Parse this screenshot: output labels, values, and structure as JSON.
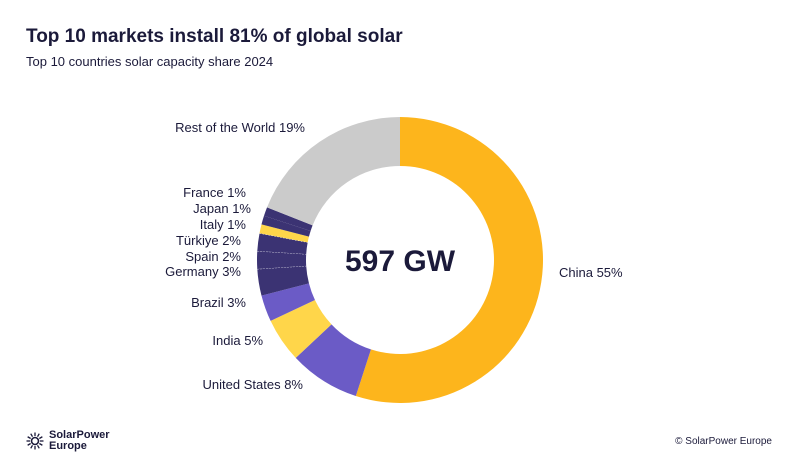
{
  "header": {
    "title": "Top 10 markets install 81% of global solar",
    "subtitle": "Top 10 countries solar capacity share 2024"
  },
  "chart_data": {
    "type": "pie",
    "donut": true,
    "center_label": "597 GW",
    "categories": [
      "China",
      "United States",
      "India",
      "Brazil",
      "Germany",
      "Spain",
      "Türkiye",
      "Italy",
      "Japan",
      "France",
      "Rest of the World"
    ],
    "values": [
      55,
      8,
      5,
      3,
      3,
      2,
      2,
      1,
      1,
      1,
      19
    ],
    "labels": [
      "China 55%",
      "United States 8%",
      "India 5%",
      "Brazil 3%",
      "Germany 3%",
      "Spain 2%",
      "Türkiye 2%",
      "Italy 1%",
      "Japan 1%",
      "France 1%",
      "Rest of the World 19%"
    ],
    "colors": [
      "#FDB51C",
      "#6B5BC6",
      "#FFD64A",
      "#6B5BC6",
      "#3B3373",
      "#3B3373",
      "#3B3373",
      "#FFD64A",
      "#3B3373",
      "#3B3373",
      "#CBCBCB"
    ],
    "unit": "%"
  },
  "footer": {
    "logo_line1": "SolarPower",
    "logo_line2": "Europe",
    "copyright": "© SolarPower Europe"
  }
}
